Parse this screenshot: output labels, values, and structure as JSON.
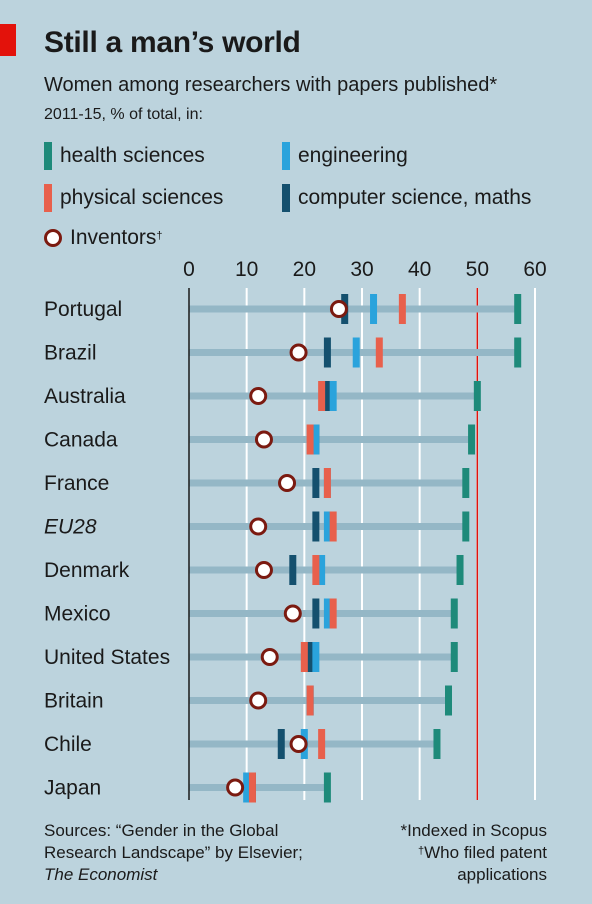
{
  "title": "Still a man’s world",
  "subtitle": "Women among researchers with papers published*",
  "subtitle2": "2011-15, % of total, in:",
  "legend": {
    "health": "health sciences",
    "engineering": "engineering",
    "physical": "physical sciences",
    "cs": "computer science, maths",
    "inventors": "Inventors",
    "inventors_mark": "†"
  },
  "colors": {
    "health": "#1e8a7a",
    "engineering": "#2aa3dc",
    "physical": "#e8604c",
    "cs": "#14506e",
    "inventor_ring": "#7b1a10",
    "band": "#94b7c6",
    "ref_line": "#e3120b"
  },
  "sources": {
    "line1": "Sources: “Gender in the Global",
    "line2": "Research Landscape” by Elsevier;",
    "line3": "The Economist"
  },
  "notes": {
    "line1": "*Indexed in Scopus",
    "line2_mark": "†",
    "line2": "Who filed patent",
    "line3": "applications"
  },
  "chart_data": {
    "type": "dot-range",
    "title": "Still a man’s world",
    "subtitle": "Women among researchers with papers published*, 2011-15, % of total, in:",
    "xlim": [
      0,
      60
    ],
    "xticks": [
      0,
      10,
      20,
      30,
      40,
      50,
      60
    ],
    "reference_line": 50,
    "grid": true,
    "legend_placement": "top",
    "categories": [
      "Portugal",
      "Brazil",
      "Australia",
      "Canada",
      "France",
      "EU28",
      "Denmark",
      "Mexico",
      "United States",
      "Britain",
      "Chile",
      "Japan"
    ],
    "italic_categories": [
      "EU28"
    ],
    "series": [
      {
        "name": "health sciences",
        "key": "health",
        "values": [
          57,
          57,
          50,
          49,
          48,
          48,
          47,
          46,
          46,
          45,
          43,
          24
        ]
      },
      {
        "name": "engineering",
        "key": "engineering",
        "values": [
          32,
          29,
          25,
          22,
          24,
          24,
          23,
          24,
          22,
          21,
          20,
          10
        ]
      },
      {
        "name": "physical sciences",
        "key": "physical",
        "values": [
          37,
          33,
          23,
          21,
          24,
          25,
          22,
          25,
          20,
          21,
          23,
          11
        ]
      },
      {
        "name": "computer science, maths",
        "key": "cs",
        "values": [
          27,
          24,
          24,
          22,
          22,
          22,
          18,
          22,
          21,
          21,
          16,
          11
        ]
      },
      {
        "name": "Inventors",
        "key": "inventors",
        "values": [
          26,
          19,
          12,
          13,
          17,
          12,
          13,
          18,
          14,
          12,
          19,
          8
        ]
      }
    ]
  }
}
